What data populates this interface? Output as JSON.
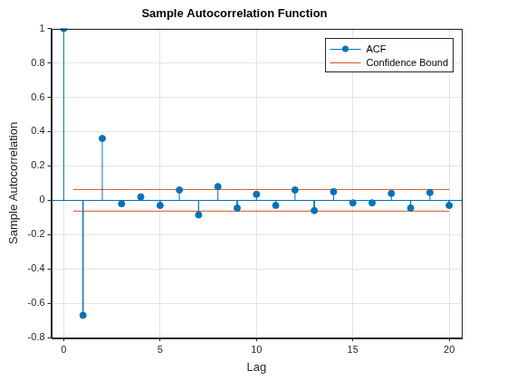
{
  "chart_data": {
    "type": "stem",
    "title": "Sample Autocorrelation Function",
    "x_label": "Lag",
    "y_label": "Sample Autocorrelation",
    "x": [
      0,
      1,
      2,
      3,
      4,
      5,
      6,
      7,
      8,
      9,
      10,
      11,
      12,
      13,
      14,
      15,
      16,
      17,
      18,
      19,
      20
    ],
    "series": [
      {
        "name": "ACF",
        "color": "#0072bd",
        "marker": "circle",
        "line_style": "solid",
        "values": [
          1.0,
          -0.67,
          0.36,
          -0.02,
          0.02,
          -0.03,
          0.06,
          -0.085,
          0.08,
          -0.045,
          0.035,
          -0.03,
          0.06,
          -0.06,
          0.05,
          -0.015,
          -0.015,
          0.04,
          -0.045,
          0.045,
          -0.03
        ]
      },
      {
        "name": "Confidence Bound",
        "color": "#d95319",
        "type": "line",
        "line_style": "solid",
        "x": [
          0.5,
          20
        ],
        "upper": 0.063,
        "lower": -0.063
      }
    ],
    "xlim": [
      -0.65,
      20.65
    ],
    "xticks": [
      0,
      5,
      10,
      15,
      20
    ],
    "ylim": [
      -0.8,
      1
    ],
    "yticks": [
      -0.8,
      -0.6,
      -0.4,
      -0.2,
      0,
      0.2,
      0.4,
      0.6,
      0.8,
      1
    ],
    "grid": true,
    "legend": "northeast"
  }
}
